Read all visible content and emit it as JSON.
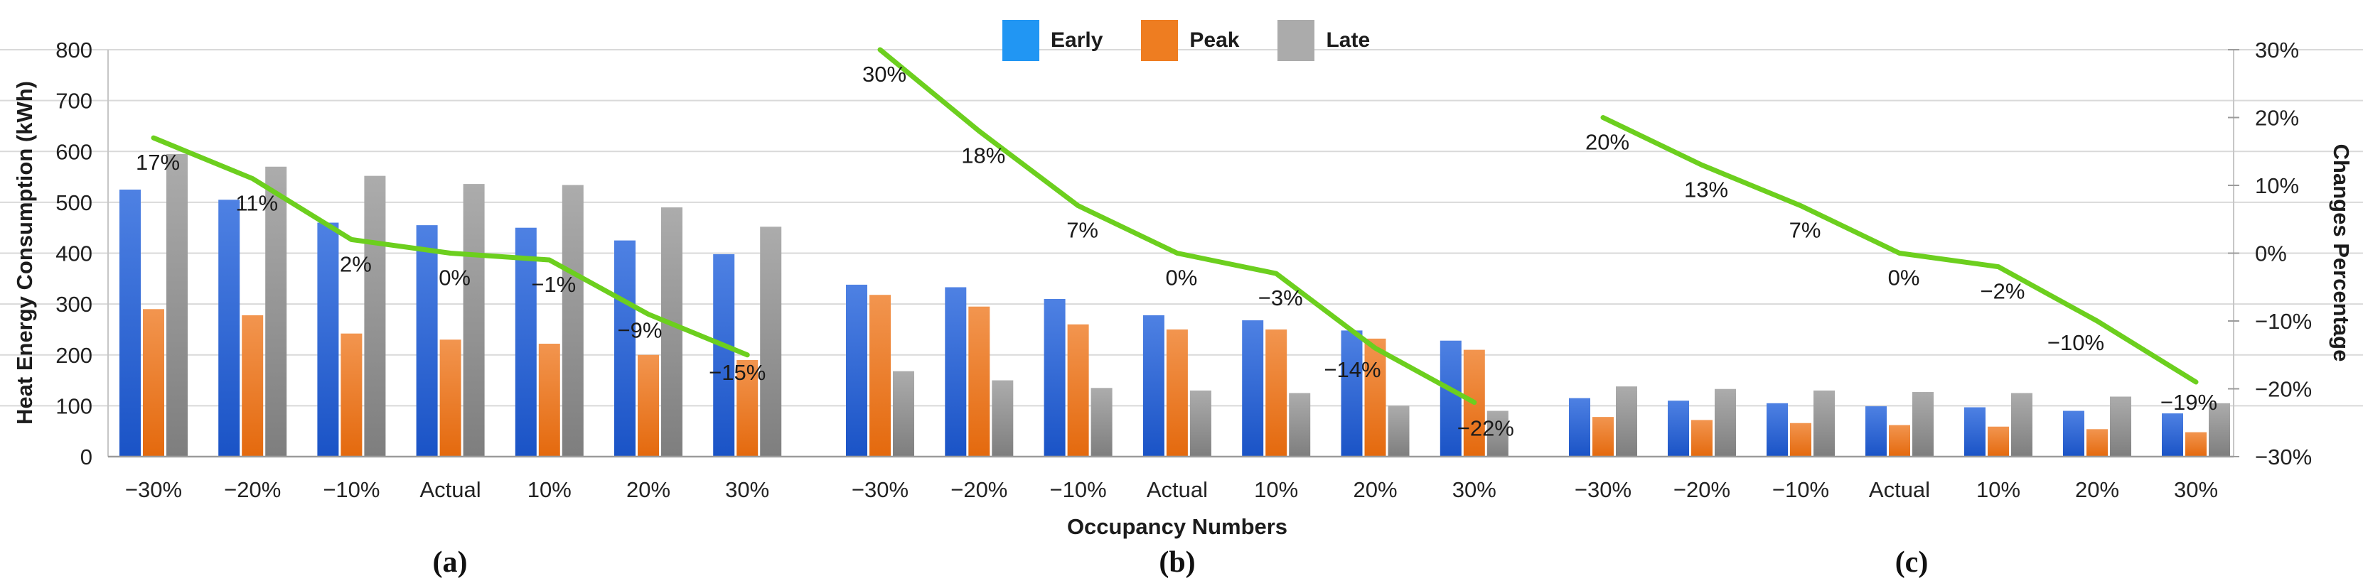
{
  "chart_data": {
    "type": "grouped-bar+line",
    "title": "",
    "xlabel": "Occupancy Numbers",
    "ylabel_left": "Heat Energy Consumption (kWh)",
    "ylabel_right": "Changes Percentage",
    "grid": true,
    "legend_position": "top-center",
    "y_left": {
      "min": 0,
      "max": 800,
      "step": 100,
      "tick_labels": [
        "800",
        "700",
        "600",
        "500",
        "400",
        "300",
        "200",
        "100",
        "0"
      ]
    },
    "y_right": {
      "min": -30,
      "max": 30,
      "step": 10,
      "tick_labels": [
        "30%",
        "20%",
        "10%",
        "0%",
        "−10%",
        "−20%",
        "−30%"
      ]
    },
    "categories": [
      "−30%",
      "−20%",
      "−10%",
      "Actual",
      "10%",
      "20%",
      "30%"
    ],
    "series_names": [
      "Early",
      "Peak",
      "Late"
    ],
    "colors": {
      "early_legend": "#2196F3",
      "early_bar_top": "#4E81E3",
      "early_bar_bottom": "#1A53C6",
      "peak_legend": "#EE7D21",
      "peak_bar_top": "#F2954F",
      "peak_bar_bottom": "#E4690D",
      "late_legend": "#ABABAB",
      "late_bar_top": "#ACACAC",
      "late_bar_bottom": "#7E7E7E",
      "line": "#6CCF1E",
      "gridline": "#D9D9D9",
      "axis": "#9B9B9B",
      "border": "#C6C6C6",
      "text": "#222222",
      "label_text": "#1A1A1A"
    },
    "panels": [
      {
        "label": "(a)",
        "series": [
          {
            "name": "Early",
            "values": [
              525,
              505,
              460,
              455,
              450,
              425,
              398
            ]
          },
          {
            "name": "Peak",
            "values": [
              290,
              278,
              242,
              230,
              222,
              200,
              190
            ]
          },
          {
            "name": "Late",
            "values": [
              595,
              570,
              552,
              536,
              534,
              490,
              452
            ]
          }
        ],
        "line_percent": [
          17,
          11,
          2,
          0,
          -1,
          -9,
          -15
        ],
        "line_labels": [
          "17%",
          "11%",
          "2%",
          "0%",
          "−1%",
          "−9%",
          "−15%"
        ]
      },
      {
        "label": "(b)",
        "series": [
          {
            "name": "Early",
            "values": [
              338,
              333,
              310,
              278,
              268,
              248,
              228
            ]
          },
          {
            "name": "Peak",
            "values": [
              318,
              295,
              260,
              250,
              250,
              232,
              210
            ]
          },
          {
            "name": "Late",
            "values": [
              168,
              150,
              135,
              130,
              125,
              100,
              90
            ]
          }
        ],
        "line_percent": [
          30,
          18,
          7,
          0,
          -3,
          -14,
          -22
        ],
        "line_labels": [
          "30%",
          "18%",
          "7%",
          "0%",
          "−3%",
          "−14%",
          "−22%"
        ]
      },
      {
        "label": "(c)",
        "series": [
          {
            "name": "Early",
            "values": [
              115,
              110,
              105,
              99,
              97,
              90,
              85
            ]
          },
          {
            "name": "Peak",
            "values": [
              78,
              72,
              66,
              62,
              59,
              54,
              48
            ]
          },
          {
            "name": "Late",
            "values": [
              138,
              133,
              130,
              127,
              125,
              118,
              105
            ]
          }
        ],
        "line_percent": [
          20,
          13,
          7,
          0,
          -2,
          -10,
          -19
        ],
        "line_labels": [
          "20%",
          "13%",
          "7%",
          "0%",
          "−2%",
          "−10%",
          "−19%"
        ]
      }
    ]
  }
}
